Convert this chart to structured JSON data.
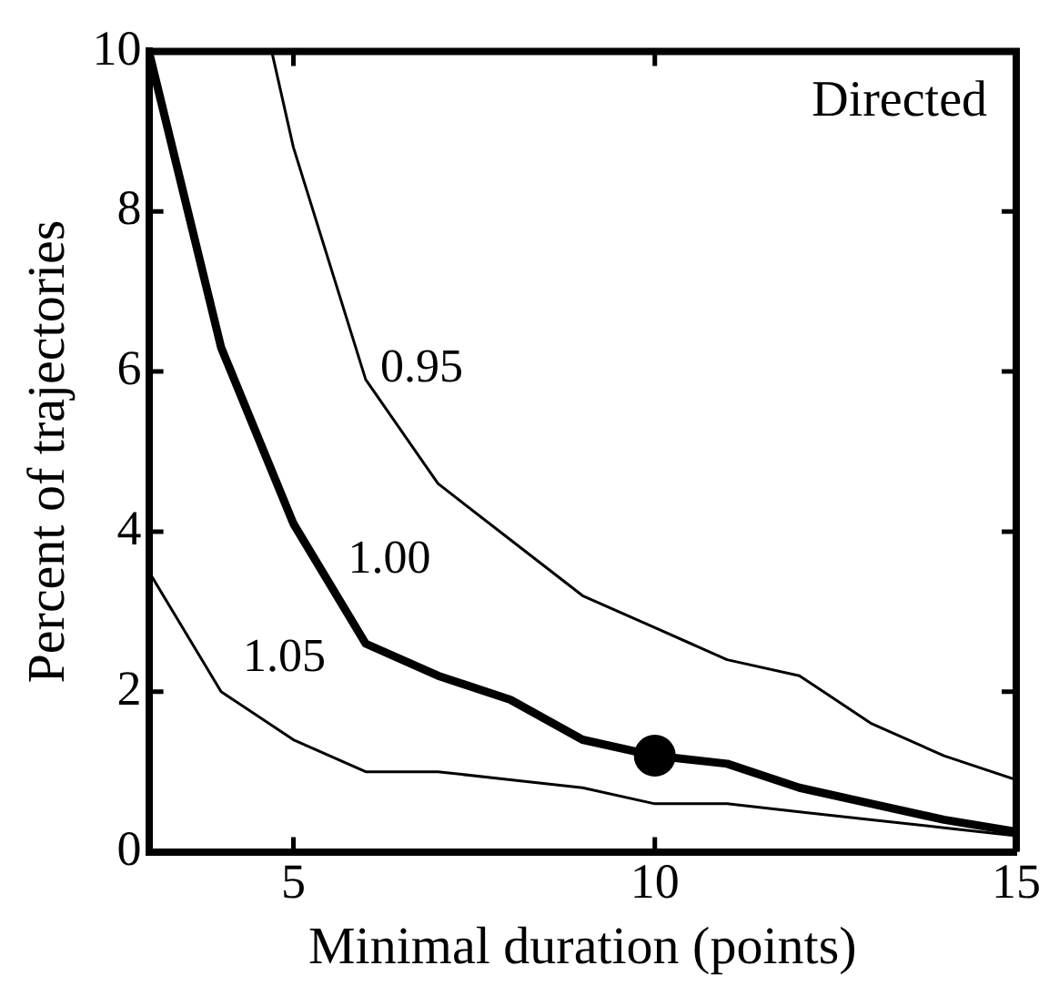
{
  "chart_data": {
    "type": "line",
    "xlabel": "Minimal duration (points)",
    "ylabel": "Percent of trajectories",
    "xlim": [
      3,
      15
    ],
    "xticks": [
      5,
      10,
      15
    ],
    "ylim": [
      0,
      10
    ],
    "yticks": [
      0,
      2,
      4,
      6,
      8,
      10
    ],
    "grid": false,
    "legend": false,
    "marker": "none",
    "line_style": "solid",
    "annotations": [
      "Directed"
    ],
    "series": [
      {
        "name": "0.95",
        "color": "#000000",
        "x": [
          4.7,
          5,
          6,
          7,
          8,
          9,
          10,
          11,
          12,
          13,
          14,
          15
        ],
        "values": [
          10,
          8.8,
          5.9,
          4.6,
          3.9,
          3.2,
          2.8,
          2.4,
          2.2,
          1.6,
          1.2,
          0.9
        ]
      },
      {
        "name": "1.00",
        "color": "#000000",
        "x": [
          3,
          4,
          5,
          6,
          7,
          8,
          9,
          10,
          11,
          12,
          13,
          14,
          15
        ],
        "values": [
          10,
          6.3,
          4.1,
          2.6,
          2.2,
          1.9,
          1.4,
          1.2,
          1.1,
          0.8,
          0.6,
          0.4,
          0.25
        ]
      },
      {
        "name": "1.05",
        "color": "#000000",
        "x": [
          3,
          4,
          5,
          6,
          7,
          8,
          9,
          10,
          11,
          12,
          13,
          14,
          15
        ],
        "values": [
          3.5,
          2.0,
          1.4,
          1.0,
          1.0,
          0.9,
          0.8,
          0.6,
          0.6,
          0.5,
          0.4,
          0.3,
          0.2
        ]
      },
      {
        "type": "scatter",
        "marker": "circle",
        "color": "#000000",
        "x": [
          10
        ],
        "values": [
          1.2
        ]
      }
    ]
  }
}
